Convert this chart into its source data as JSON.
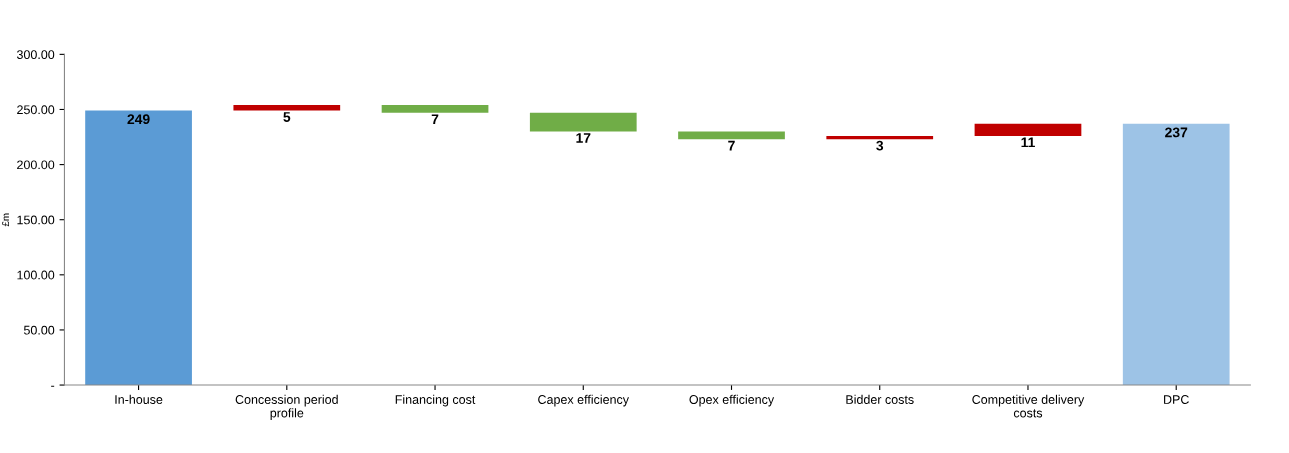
{
  "chart_data": {
    "type": "bar",
    "ylabel": "£m",
    "categories": [
      "In-house",
      "Concession period\nprofile",
      "Financing cost",
      "Capex efficiency",
      "Opex efficiency",
      "Bidder costs",
      "Competitive delivery\ncosts",
      "DPC"
    ],
    "values": [
      249,
      5,
      7,
      17,
      7,
      3,
      11,
      237
    ],
    "base": [
      0,
      249,
      247,
      230,
      223,
      223,
      226,
      0
    ],
    "colors": [
      "#5b9bd5",
      "#c00000",
      "#70ad47",
      "#70ad47",
      "#70ad47",
      "#c00000",
      "#c00000",
      "#9dc3e6"
    ],
    "data_labels": true,
    "ylim": [
      0,
      300
    ],
    "yticks": [
      {
        "value": 0,
        "label": "-"
      },
      {
        "value": 50,
        "label": "50.00"
      },
      {
        "value": 100,
        "label": "100.00"
      },
      {
        "value": 150,
        "label": "150.00"
      },
      {
        "value": 200,
        "label": "200.00"
      },
      {
        "value": 250,
        "label": "250.00"
      },
      {
        "value": 300,
        "label": "300.00"
      }
    ],
    "grid": false
  }
}
